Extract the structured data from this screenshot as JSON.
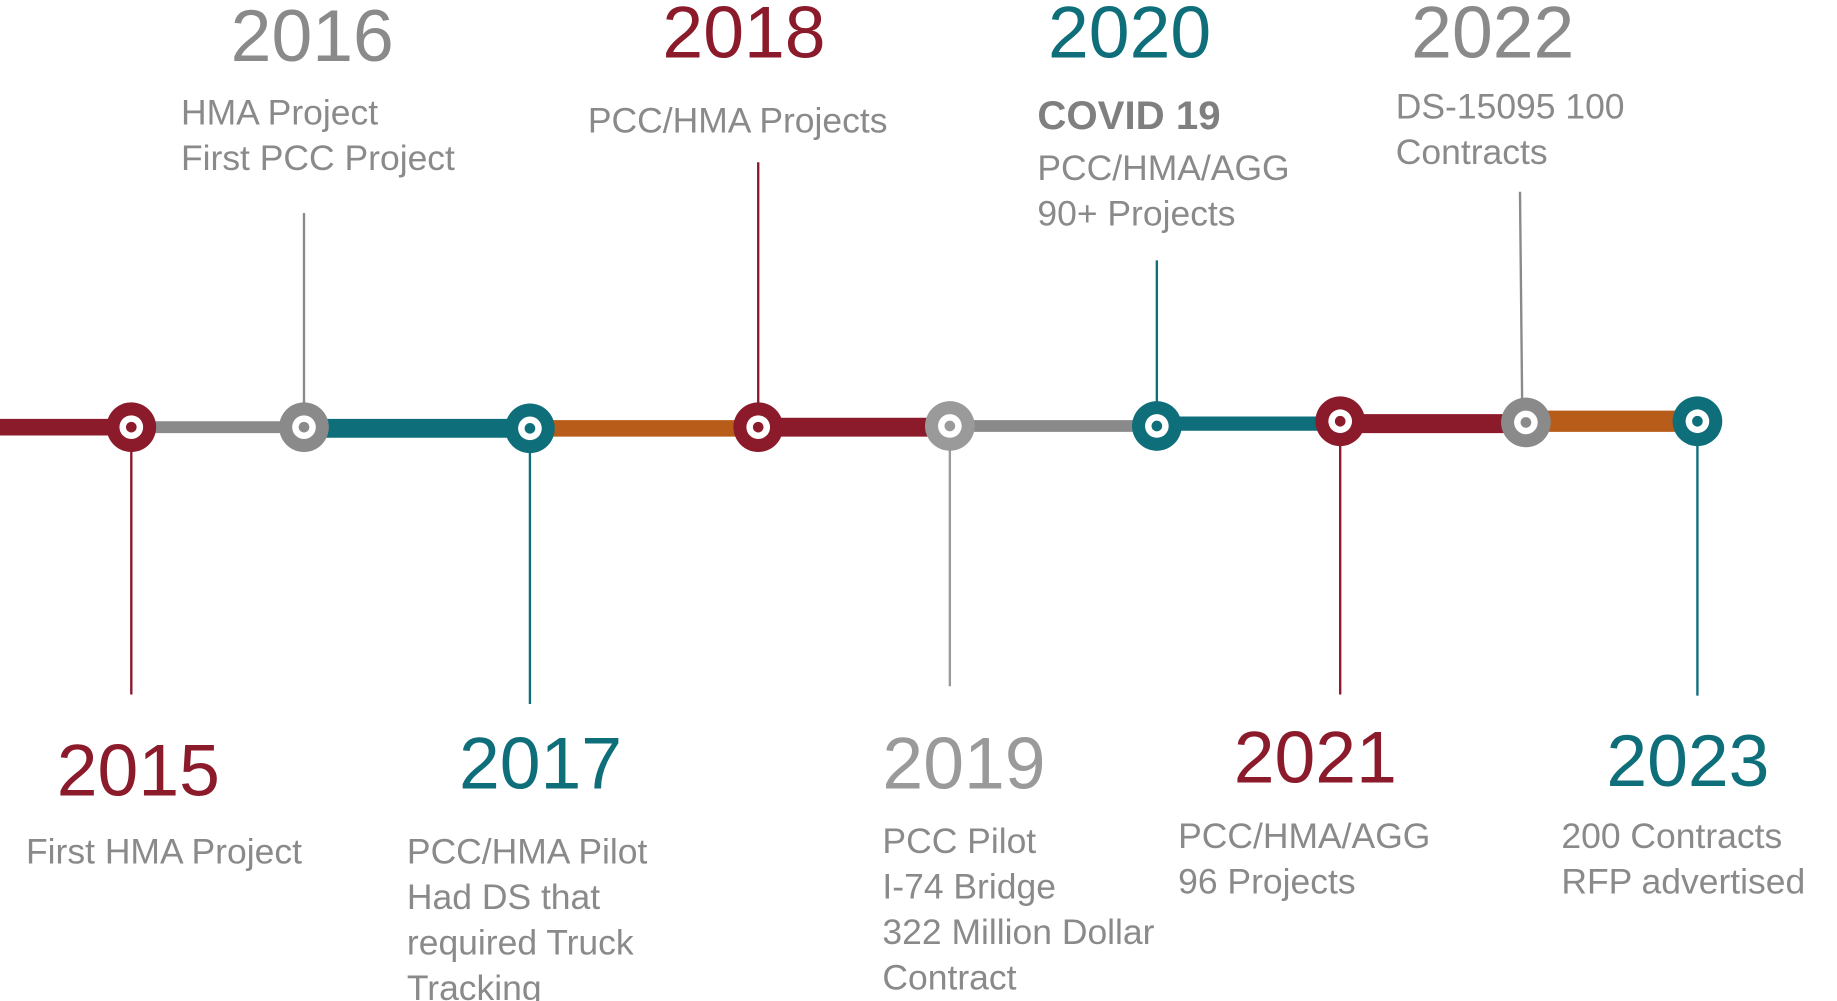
{
  "timeline": {
    "events": [
      {
        "year": "2015",
        "color": "#8b1a2b",
        "lines": [
          "First HMA Project"
        ]
      },
      {
        "year": "2016",
        "color": "#8a8a8a",
        "lines": [
          "HMA Project",
          "First PCC Project"
        ]
      },
      {
        "year": "2017",
        "color": "#0e6e7a",
        "lines": [
          "PCC/HMA Pilot",
          "Had DS that",
          "required Truck",
          "Tracking"
        ]
      },
      {
        "year": "2018",
        "color": "#8b1a2b",
        "lines": [
          "PCC/HMA Projects"
        ]
      },
      {
        "year": "2019",
        "color": "#9a9a9a",
        "lines": [
          "PCC Pilot",
          "I-74 Bridge",
          "322 Million Dollar",
          "Contract"
        ]
      },
      {
        "year": "2020",
        "color": "#0e6e7a",
        "heading": "COVID 19",
        "lines": [
          "PCC/HMA/AGG",
          "90+ Projects"
        ]
      },
      {
        "year": "2021",
        "color": "#8b1a2b",
        "lines": [
          "PCC/HMA/AGG",
          "96 Projects"
        ]
      },
      {
        "year": "2022",
        "color": "#8a8a8a",
        "lines": [
          "DS-15095 100",
          "Contracts"
        ]
      },
      {
        "year": "2023",
        "color": "#0e6e7a",
        "lines": [
          "200 Contracts",
          "RFP advertised"
        ]
      }
    ]
  }
}
